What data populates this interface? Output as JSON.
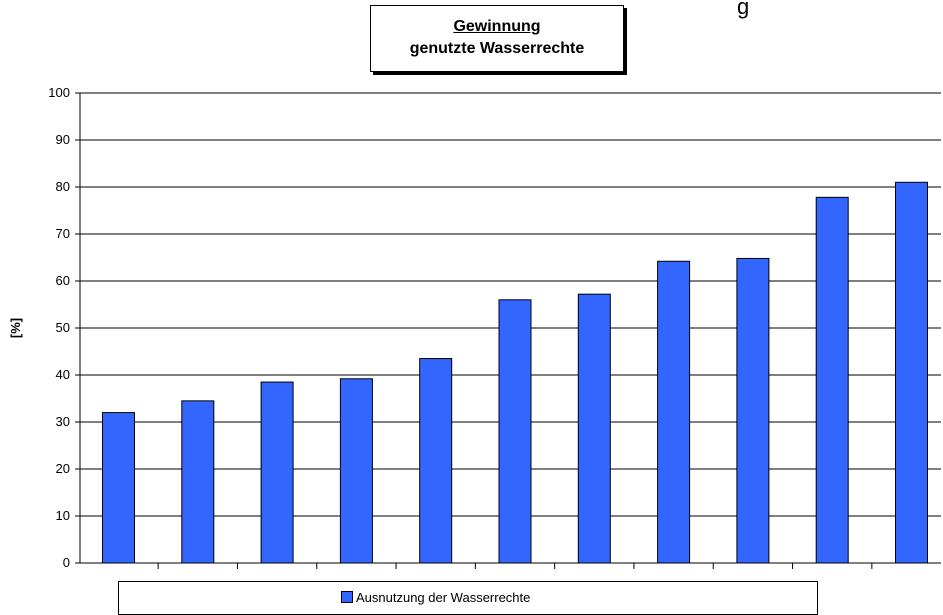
{
  "chart_data": {
    "type": "bar",
    "title": "Gewinnung",
    "subtitle": "genutzte Wasserrechte",
    "ylabel": "[%]",
    "xlabel": "",
    "ylim": [
      0,
      100
    ],
    "yticks": [
      0,
      10,
      20,
      30,
      40,
      50,
      60,
      70,
      80,
      90,
      100
    ],
    "grid": true,
    "legend_position": "bottom",
    "series": [
      {
        "name": "Ausnutzung der Wasserrechte",
        "color": "#3366ff",
        "values": [
          32,
          34.5,
          38.5,
          39.2,
          43.5,
          56,
          57.2,
          64.2,
          64.8,
          77.8,
          81
        ]
      }
    ]
  },
  "partial_title_fragment": "g"
}
